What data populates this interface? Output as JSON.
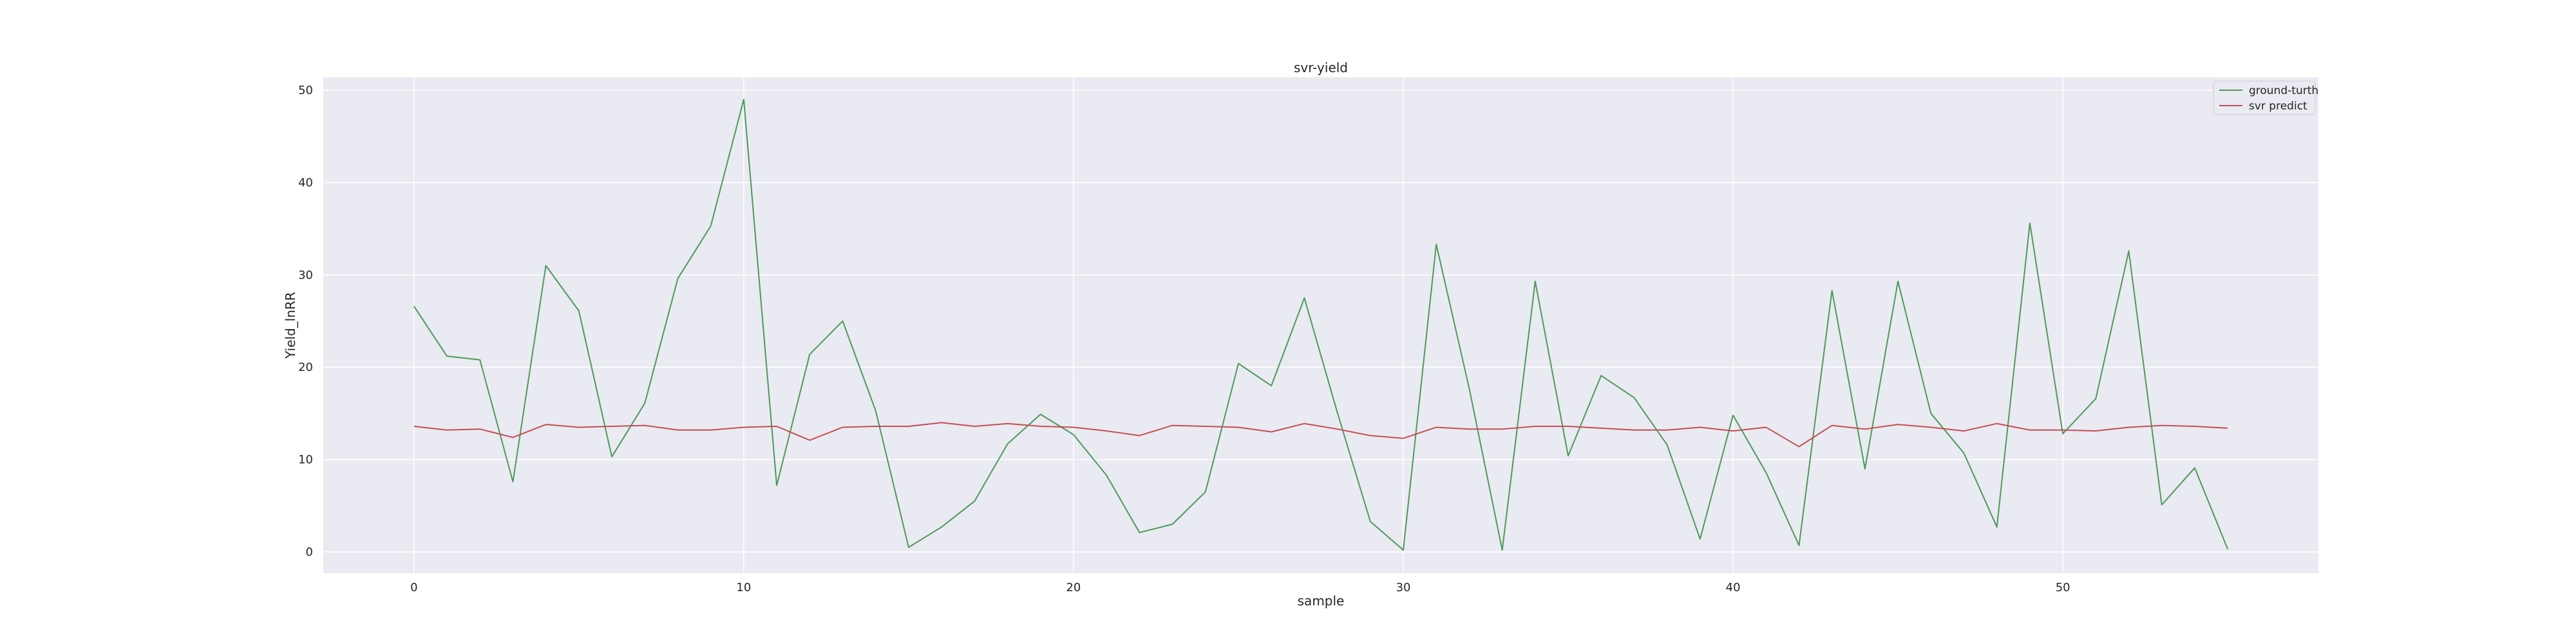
{
  "chart_data": {
    "type": "line",
    "title": "svr-yield",
    "xlabel": "sample",
    "ylabel": "Yield_lnRR",
    "xlim": [
      -2.75,
      57.75
    ],
    "ylim": [
      -2.3,
      51.4
    ],
    "xticks": [
      0,
      10,
      20,
      30,
      40,
      50
    ],
    "yticks": [
      0,
      10,
      20,
      30,
      40,
      50
    ],
    "grid": true,
    "legend_position": "top-right",
    "background_color": "#eaeaf2",
    "grid_color": "#ffffff",
    "x": [
      0,
      1,
      2,
      3,
      4,
      5,
      6,
      7,
      8,
      9,
      10,
      11,
      12,
      13,
      14,
      15,
      16,
      17,
      18,
      19,
      20,
      21,
      22,
      23,
      24,
      25,
      26,
      27,
      28,
      29,
      30,
      31,
      32,
      33,
      34,
      35,
      36,
      37,
      38,
      39,
      40,
      41,
      42,
      43,
      44,
      45,
      46,
      47,
      48,
      49,
      50,
      51,
      52,
      53,
      54,
      55
    ],
    "series": [
      {
        "name": "ground-turth",
        "color": "#4c9a5a",
        "values": [
          26.6,
          21.2,
          20.8,
          7.6,
          31.0,
          26.1,
          10.3,
          16.1,
          29.6,
          35.3,
          49.0,
          7.2,
          21.4,
          25.0,
          15.3,
          0.5,
          2.7,
          5.5,
          11.7,
          14.9,
          12.7,
          8.3,
          2.1,
          3.0,
          6.5,
          20.4,
          18.0,
          27.5,
          15.1,
          3.3,
          0.2,
          33.3,
          17.7,
          0.2,
          29.3,
          10.4,
          19.1,
          16.7,
          11.6,
          1.4,
          14.8,
          8.6,
          0.7,
          28.3,
          9.0,
          29.3,
          15.0,
          10.7,
          2.7,
          35.6,
          12.8,
          16.6,
          32.6,
          5.1,
          9.1,
          0.3
        ]
      },
      {
        "name": "svr predict",
        "color": "#c44e52",
        "values": [
          13.6,
          13.2,
          13.3,
          12.4,
          13.8,
          13.5,
          13.6,
          13.7,
          13.2,
          13.2,
          13.5,
          13.6,
          12.1,
          13.5,
          13.6,
          13.6,
          14.0,
          13.6,
          13.9,
          13.6,
          13.5,
          13.1,
          12.6,
          13.7,
          13.6,
          13.5,
          13.0,
          13.9,
          13.3,
          12.6,
          12.3,
          13.5,
          13.3,
          13.3,
          13.6,
          13.6,
          13.4,
          13.2,
          13.2,
          13.5,
          13.1,
          13.5,
          11.4,
          13.7,
          13.3,
          13.8,
          13.5,
          13.1,
          13.9,
          13.2,
          13.2,
          13.1,
          13.5,
          13.7,
          13.6,
          13.4
        ]
      }
    ]
  }
}
